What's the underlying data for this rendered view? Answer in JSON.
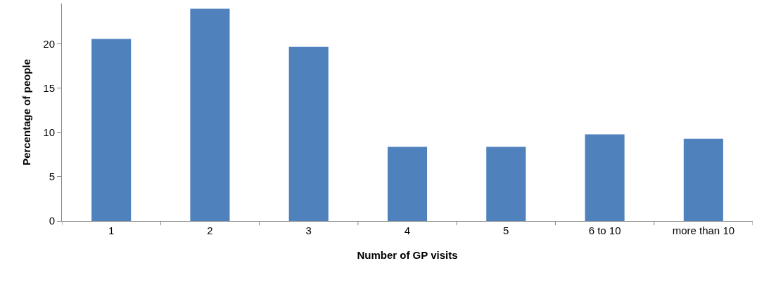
{
  "chart_data": {
    "type": "bar",
    "xlabel": "Number of GP visits",
    "ylabel": "Percentage of people",
    "categories": [
      "1",
      "2",
      "3",
      "4",
      "5",
      "6 to 10",
      "more than 10"
    ],
    "values": [
      20.6,
      24.0,
      19.7,
      8.4,
      8.4,
      9.8,
      9.3
    ],
    "color": "#4f81bd",
    "ylim": [
      0,
      24.6
    ],
    "yticks": [
      0,
      5,
      10,
      15,
      20
    ],
    "grid": false,
    "legend": false
  }
}
